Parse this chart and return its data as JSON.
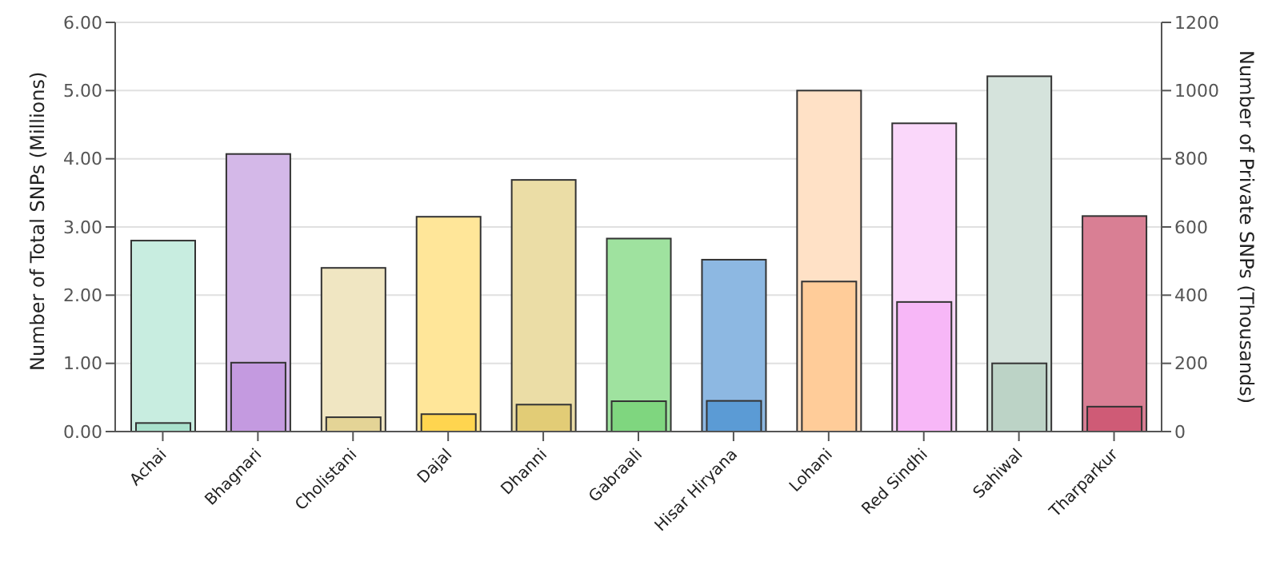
{
  "chart_data": {
    "type": "bar",
    "ylabel": "Number of Total SNPs (Millions)",
    "y2label": "Number of Private SNPs (Thousands)",
    "categories": [
      "Achai",
      "Bhagnari",
      "Cholistani",
      "Dajal",
      "Dhanni",
      "Gabraali",
      "Hisar Hiryana",
      "Lohani",
      "Red Sindhi",
      "Sahiwal",
      "Tharparkur"
    ],
    "series": [
      {
        "values": [
          2.8,
          4.07,
          2.4,
          3.15,
          3.69,
          2.83,
          2.52,
          5.0,
          4.52,
          5.21,
          3.16
        ],
        "colors": [
          "#c8ede0",
          "#d4b8e8",
          "#f0e6c2",
          "#ffe699",
          "#ebdda6",
          "#9fe29f",
          "#8db8e2",
          "#ffe1c6",
          "#fad7fa",
          "#d5e3dc",
          "#d97f94"
        ]
      },
      {
        "axis": "y2",
        "values": [
          25,
          202,
          42,
          51,
          79,
          89,
          90,
          440,
          380,
          200,
          73
        ],
        "colors": [
          "#a9e1cc",
          "#c49ae0",
          "#e4d496",
          "#ffd54f",
          "#e2cc76",
          "#7fd67f",
          "#5b9bd5",
          "#ffcc99",
          "#f7b7f7",
          "#bcd3c6",
          "#cf5b76"
        ]
      }
    ],
    "ylim": [
      0,
      6
    ],
    "yticks": [
      {
        "value": 0,
        "label": "0.00"
      },
      {
        "value": 1,
        "label": "1.00"
      },
      {
        "value": 2,
        "label": "2.00"
      },
      {
        "value": 3,
        "label": "3.00"
      },
      {
        "value": 4,
        "label": "4.00"
      },
      {
        "value": 5,
        "label": "5.00"
      },
      {
        "value": 6,
        "label": "6.00"
      }
    ],
    "y2lim": [
      0,
      1200
    ],
    "y2ticks": [
      0,
      200,
      400,
      600,
      800,
      1000,
      1200
    ],
    "grid": "y"
  }
}
